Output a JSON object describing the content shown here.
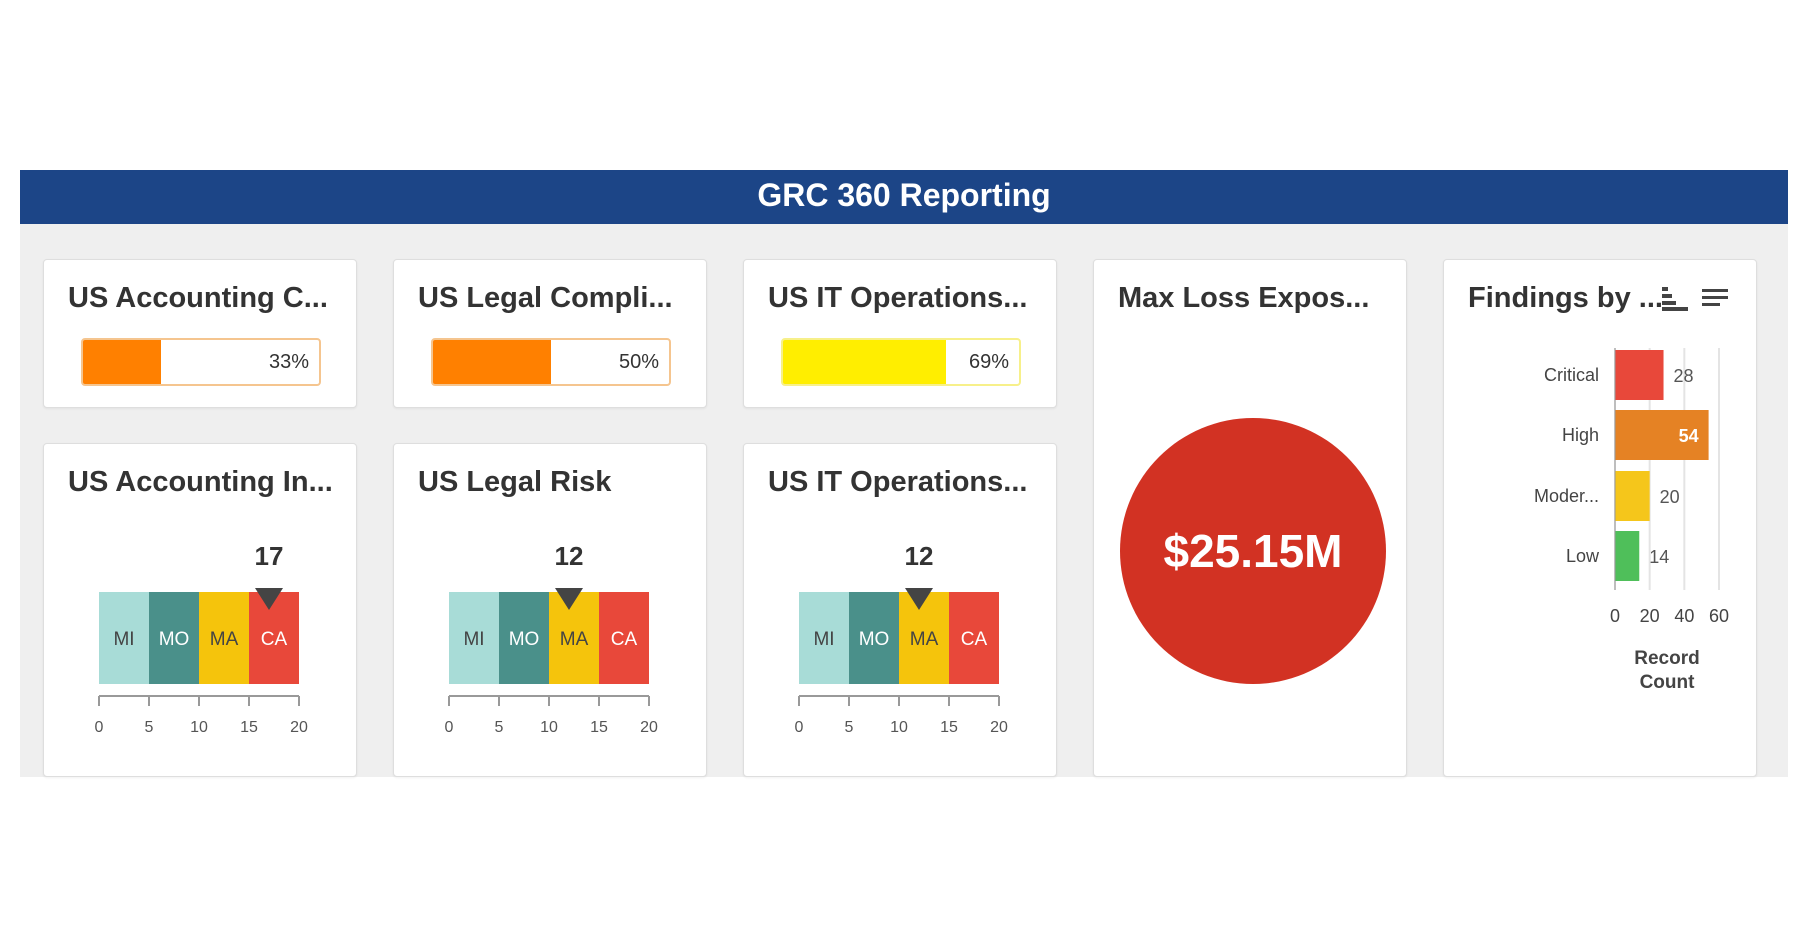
{
  "header": {
    "title": "GRC 360 Reporting"
  },
  "progress_cards": [
    {
      "title": "US Accounting C...",
      "value": 33,
      "label": "33%",
      "color": "#ff8000",
      "border": "#f5c58f"
    },
    {
      "title": "US Legal Compli...",
      "value": 50,
      "label": "50%",
      "color": "#ff8000",
      "border": "#f5c58f"
    },
    {
      "title": "US IT Operations...",
      "value": 69,
      "label": "69%",
      "color": "#ffee00",
      "border": "#f7f08a"
    }
  ],
  "gauge_cards": [
    {
      "title": "US Accounting In...",
      "value": 17,
      "value_label": "17"
    },
    {
      "title": "US Legal Risk",
      "value": 12,
      "value_label": "12"
    },
    {
      "title": "US IT Operations...",
      "value": 12,
      "value_label": "12"
    }
  ],
  "gauge_scale": {
    "min": 0,
    "max": 20,
    "ticks": [
      "0",
      "5",
      "10",
      "15",
      "20"
    ],
    "bands": [
      {
        "label": "MI",
        "from": 0,
        "to": 5,
        "color": "#a8dcd7",
        "text": "#444444"
      },
      {
        "label": "MO",
        "from": 5,
        "to": 10,
        "color": "#4a908a",
        "text": "#ffffff"
      },
      {
        "label": "MA",
        "from": 10,
        "to": 15,
        "color": "#f5c40c",
        "text": "#444444"
      },
      {
        "label": "CA",
        "from": 15,
        "to": 20,
        "color": "#e8483a",
        "text": "#ffffff"
      }
    ]
  },
  "max_loss": {
    "title": "Max Loss Expos...",
    "value": "$25.15M",
    "color": "#d23223"
  },
  "findings": {
    "title": "Findings by ...",
    "sort_icon": "bar-sort-icon",
    "menu_icon": "lines-menu-icon",
    "chart_data": {
      "type": "bar",
      "orientation": "horizontal",
      "categories": [
        "Critical",
        "High",
        "Moder...",
        "Low"
      ],
      "values": [
        28,
        54,
        20,
        14
      ],
      "value_labels": [
        "28",
        "54",
        "20",
        "14"
      ],
      "colors": [
        "#e8483a",
        "#e58224",
        "#f5c61b",
        "#4fbf5a"
      ],
      "xlabel": "Record Count",
      "x_ticks": [
        "0",
        "20",
        "40",
        "60"
      ],
      "xlim": [
        0,
        60
      ],
      "grid": true
    }
  }
}
